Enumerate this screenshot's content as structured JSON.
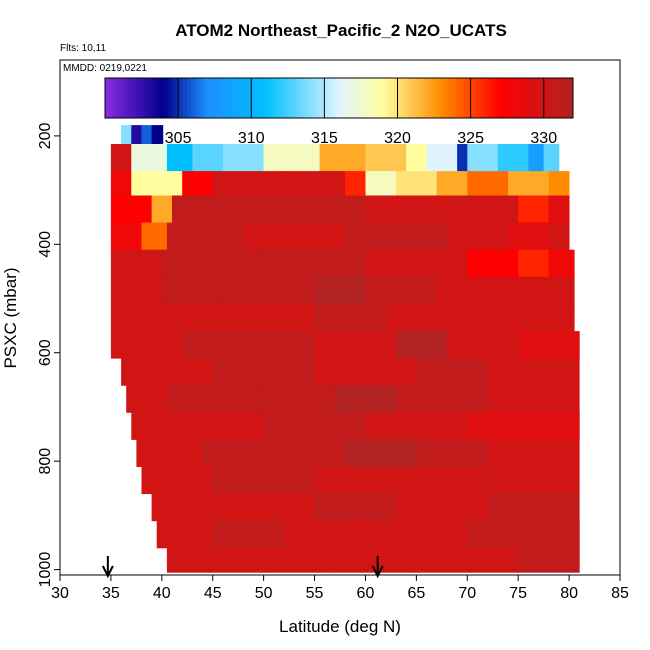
{
  "chart_data": {
    "type": "heatmap",
    "title": "ATOM2 Northeast_Pacific_2 N2O_UCATS",
    "flights_label": "Flts: 10,11",
    "dates_label": "MMDD: 0219,0221",
    "xlabel": "Latitude (deg N)",
    "ylabel": "PSXC (mbar)",
    "xlim": [
      30,
      85
    ],
    "ylim": [
      1010,
      60
    ],
    "x_ticks": [
      "30",
      "35",
      "40",
      "45",
      "50",
      "55",
      "60",
      "65",
      "70",
      "75",
      "80",
      "85"
    ],
    "y_ticks": [
      "200",
      "400",
      "600",
      "800",
      "1000"
    ],
    "colorbar": {
      "min": 300,
      "max": 332,
      "ticks": [
        "305",
        "310",
        "315",
        "320",
        "325",
        "330"
      ],
      "colors": {
        "purple": "#8a2be2",
        "navy": "#00008b",
        "blue": "#1e90ff",
        "sky": "#00bfff",
        "pale": "#e0f4ff",
        "yellow": "#ffffa0",
        "orange": "#ff8c00",
        "red": "#ff0000",
        "darkred": "#b22222"
      }
    },
    "arrows_lat": [
      34.7,
      61.2
    ],
    "pressure_bins": [
      {
        "p0": 180,
        "p1": 215,
        "lat_start": 36.0,
        "lat_end": 40.1,
        "segments": [
          [
            36.0,
            37.0,
            314
          ],
          [
            37.0,
            38.0,
            303
          ],
          [
            38.0,
            39.0,
            306
          ],
          [
            39.0,
            40.1,
            304
          ]
        ]
      },
      {
        "p0": 215,
        "p1": 265,
        "lat_start": 35.0,
        "lat_end": 79.0,
        "segments": [
          [
            35.0,
            37.0,
            330
          ],
          [
            37.0,
            40.5,
            317
          ],
          [
            40.5,
            43.0,
            311
          ],
          [
            43.0,
            46.0,
            313
          ],
          [
            46.0,
            50.0,
            314
          ],
          [
            50.0,
            55.5,
            318
          ],
          [
            55.5,
            60.0,
            322
          ],
          [
            60.0,
            64.0,
            321
          ],
          [
            64.0,
            66.0,
            319
          ],
          [
            66.0,
            69.0,
            316
          ],
          [
            69.0,
            70.0,
            305
          ],
          [
            70.0,
            73.0,
            314
          ],
          [
            73.0,
            76.0,
            312
          ],
          [
            76.0,
            77.5,
            308
          ],
          [
            77.5,
            79.0,
            313
          ]
        ]
      },
      {
        "p0": 265,
        "p1": 310,
        "lat_start": 35.0,
        "lat_end": 80.0,
        "segments": [
          [
            35.0,
            37.0,
            328
          ],
          [
            37.0,
            42.0,
            319
          ],
          [
            42.0,
            45.0,
            327
          ],
          [
            45.0,
            52.0,
            330
          ],
          [
            52.0,
            58.0,
            330
          ],
          [
            58.0,
            60.0,
            326
          ],
          [
            60.0,
            63.0,
            318
          ],
          [
            63.0,
            67.0,
            320
          ],
          [
            67.0,
            70.0,
            322
          ],
          [
            70.0,
            74.0,
            324
          ],
          [
            74.0,
            78.0,
            322
          ],
          [
            78.0,
            80.0,
            323
          ]
        ]
      },
      {
        "p0": 310,
        "p1": 360,
        "lat_start": 35.0,
        "lat_end": 80.0,
        "segments": [
          [
            35.0,
            39.0,
            327
          ],
          [
            39.0,
            41.0,
            322
          ],
          [
            41.0,
            50.0,
            331
          ],
          [
            50.0,
            60.0,
            331
          ],
          [
            60.0,
            70.0,
            330
          ],
          [
            70.0,
            75.0,
            330
          ],
          [
            75.0,
            78.0,
            326
          ],
          [
            78.0,
            80.0,
            329
          ]
        ]
      },
      {
        "p0": 360,
        "p1": 410,
        "lat_start": 35.0,
        "lat_end": 80.0,
        "segments": [
          [
            35.0,
            38.0,
            328
          ],
          [
            38.0,
            40.5,
            324
          ],
          [
            40.5,
            48.0,
            331
          ],
          [
            48.0,
            58.0,
            330
          ],
          [
            58.0,
            68.0,
            331
          ],
          [
            68.0,
            74.0,
            330
          ],
          [
            74.0,
            78.0,
            329
          ],
          [
            78.0,
            80.0,
            330
          ]
        ]
      },
      {
        "p0": 410,
        "p1": 460,
        "lat_start": 35.0,
        "lat_end": 80.5,
        "segments": [
          [
            35.0,
            40.0,
            330
          ],
          [
            40.0,
            50.0,
            331
          ],
          [
            50.0,
            60.0,
            331
          ],
          [
            60.0,
            70.0,
            330
          ],
          [
            70.0,
            75.0,
            327
          ],
          [
            75.0,
            78.0,
            326
          ],
          [
            78.0,
            80.5,
            328
          ]
        ]
      },
      {
        "p0": 460,
        "p1": 510,
        "lat_start": 35.0,
        "lat_end": 80.5,
        "segments": [
          [
            35.0,
            40.0,
            330
          ],
          [
            40.0,
            46.0,
            331
          ],
          [
            46.0,
            55.0,
            331
          ],
          [
            55.0,
            60.0,
            332
          ],
          [
            60.0,
            67.0,
            331
          ],
          [
            67.0,
            74.0,
            330
          ],
          [
            74.0,
            80.5,
            330
          ]
        ]
      },
      {
        "p0": 510,
        "p1": 560,
        "lat_start": 35.0,
        "lat_end": 80.5,
        "segments": [
          [
            35.0,
            45.0,
            330
          ],
          [
            45.0,
            55.0,
            330
          ],
          [
            55.0,
            62.0,
            331
          ],
          [
            62.0,
            70.0,
            330
          ],
          [
            70.0,
            80.5,
            330
          ]
        ]
      },
      {
        "p0": 560,
        "p1": 610,
        "lat_start": 35.0,
        "lat_end": 81.0,
        "segments": [
          [
            35.0,
            42.0,
            330
          ],
          [
            42.0,
            55.0,
            331
          ],
          [
            55.0,
            63.0,
            330
          ],
          [
            63.0,
            68.0,
            332
          ],
          [
            68.0,
            75.0,
            330
          ],
          [
            75.0,
            81.0,
            329
          ]
        ]
      },
      {
        "p0": 610,
        "p1": 660,
        "lat_start": 36.0,
        "lat_end": 81.0,
        "segments": [
          [
            36.0,
            45.0,
            330
          ],
          [
            45.0,
            55.0,
            331
          ],
          [
            55.0,
            65.0,
            330
          ],
          [
            65.0,
            72.0,
            331
          ],
          [
            72.0,
            81.0,
            330
          ]
        ]
      },
      {
        "p0": 660,
        "p1": 710,
        "lat_start": 36.5,
        "lat_end": 81.0,
        "segments": [
          [
            36.5,
            40.5,
            330
          ],
          [
            40.5,
            50.0,
            331
          ],
          [
            50.0,
            57.0,
            331
          ],
          [
            57.0,
            63.0,
            332
          ],
          [
            63.0,
            72.0,
            331
          ],
          [
            72.0,
            81.0,
            330
          ]
        ]
      },
      {
        "p0": 710,
        "p1": 760,
        "lat_start": 37.0,
        "lat_end": 81.0,
        "segments": [
          [
            37.0,
            41.0,
            330
          ],
          [
            41.0,
            50.0,
            330
          ],
          [
            50.0,
            60.0,
            331
          ],
          [
            60.0,
            70.0,
            330
          ],
          [
            70.0,
            81.0,
            329
          ]
        ]
      },
      {
        "p0": 760,
        "p1": 810,
        "lat_start": 37.5,
        "lat_end": 81.0,
        "segments": [
          [
            37.5,
            44.0,
            330
          ],
          [
            44.0,
            52.0,
            331
          ],
          [
            52.0,
            58.0,
            331
          ],
          [
            58.0,
            65.0,
            332
          ],
          [
            65.0,
            72.0,
            331
          ],
          [
            72.0,
            81.0,
            330
          ]
        ]
      },
      {
        "p0": 810,
        "p1": 860,
        "lat_start": 38.0,
        "lat_end": 81.0,
        "segments": [
          [
            38.0,
            45.0,
            330
          ],
          [
            45.0,
            55.0,
            331
          ],
          [
            55.0,
            65.0,
            330
          ],
          [
            65.0,
            72.0,
            330
          ],
          [
            72.0,
            81.0,
            330
          ]
        ]
      },
      {
        "p0": 860,
        "p1": 910,
        "lat_start": 39.0,
        "lat_end": 81.0,
        "segments": [
          [
            39.0,
            46.0,
            330
          ],
          [
            46.0,
            55.0,
            330
          ],
          [
            55.0,
            63.0,
            331
          ],
          [
            63.0,
            72.0,
            330
          ],
          [
            72.0,
            81.0,
            331
          ]
        ]
      },
      {
        "p0": 910,
        "p1": 960,
        "lat_start": 39.5,
        "lat_end": 81.0,
        "segments": [
          [
            39.5,
            45.0,
            330
          ],
          [
            45.0,
            52.0,
            331
          ],
          [
            52.0,
            60.0,
            330
          ],
          [
            60.0,
            70.0,
            330
          ],
          [
            70.0,
            81.0,
            331
          ]
        ]
      },
      {
        "p0": 960,
        "p1": 1005,
        "lat_start": 40.5,
        "lat_end": 81.0,
        "segments": [
          [
            40.5,
            50.0,
            330
          ],
          [
            50.0,
            57.0,
            330
          ],
          [
            57.0,
            65.0,
            330
          ],
          [
            65.0,
            75.0,
            330
          ],
          [
            75.0,
            81.0,
            331
          ]
        ]
      }
    ]
  }
}
